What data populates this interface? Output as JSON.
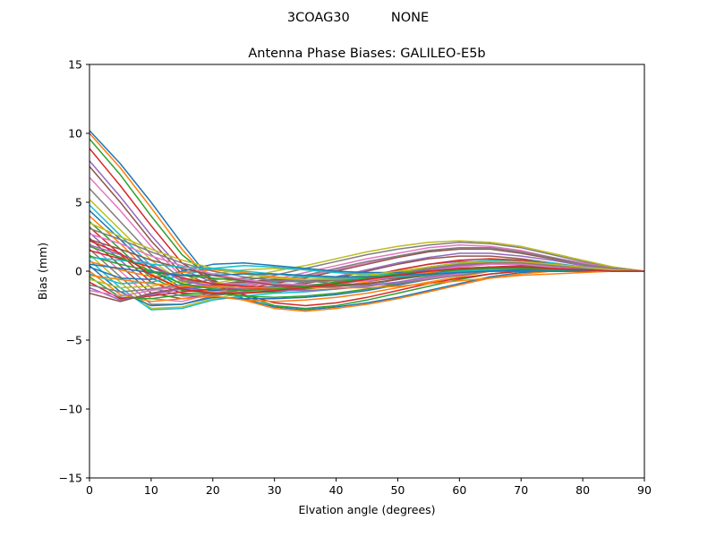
{
  "figure": {
    "suptitle": "3COAG30          NONE"
  },
  "chart_data": {
    "type": "line",
    "title": "Antenna Phase Biases: GALILEO-E5b",
    "xlabel": "Elvation angle (degrees)",
    "ylabel": "Bias (mm)",
    "xlim": [
      0,
      90
    ],
    "ylim": [
      -15,
      15
    ],
    "xticks": [
      0,
      10,
      20,
      30,
      40,
      50,
      60,
      70,
      80,
      90
    ],
    "yticks": [
      -15,
      -10,
      -5,
      0,
      5,
      10,
      15
    ],
    "grid": false,
    "legend": "none",
    "x": [
      0,
      5,
      10,
      15,
      20,
      25,
      30,
      35,
      40,
      45,
      50,
      55,
      60,
      65,
      70,
      75,
      80,
      85,
      90
    ],
    "palette": [
      "#1f77b4",
      "#ff7f0e",
      "#2ca02c",
      "#d62728",
      "#9467bd",
      "#8c564b",
      "#e377c2",
      "#7f7f7f",
      "#bcbd22",
      "#17becf"
    ],
    "series": [
      {
        "values": [
          10.2,
          7.8,
          5.0,
          2.0,
          -0.8,
          -2.0,
          -2.6,
          -2.8,
          -2.6,
          -2.3,
          -1.9,
          -1.4,
          -0.9,
          -0.4,
          -0.1,
          0.0,
          0.0,
          0.0,
          0.0
        ]
      },
      {
        "values": [
          10.0,
          7.5,
          4.6,
          1.6,
          -0.9,
          -2.1,
          -2.7,
          -2.9,
          -2.7,
          -2.4,
          -2.0,
          -1.5,
          -1.0,
          -0.5,
          -0.2,
          0.0,
          0.0,
          0.0,
          0.0
        ]
      },
      {
        "values": [
          9.6,
          7.0,
          4.0,
          1.2,
          -0.6,
          -1.8,
          -2.5,
          -2.7,
          -2.5,
          -2.1,
          -1.6,
          -1.1,
          -0.6,
          -0.2,
          0.0,
          0.0,
          0.0,
          0.0,
          0.0
        ]
      },
      {
        "values": [
          8.9,
          6.2,
          3.3,
          0.6,
          -0.7,
          -1.7,
          -2.3,
          -2.5,
          -2.3,
          -1.9,
          -1.4,
          -0.9,
          -0.5,
          -0.2,
          0.0,
          0.0,
          0.0,
          0.0,
          0.0
        ]
      },
      {
        "values": [
          8.0,
          5.4,
          2.6,
          0.1,
          -0.8,
          -1.4,
          -1.5,
          -1.3,
          -0.9,
          -0.4,
          0.1,
          0.5,
          0.7,
          0.7,
          0.6,
          0.4,
          0.2,
          0.1,
          0.0
        ]
      },
      {
        "values": [
          7.6,
          5.0,
          2.2,
          -0.2,
          -1.0,
          -1.3,
          -1.2,
          -0.9,
          -0.5,
          0.0,
          0.5,
          0.9,
          1.1,
          1.1,
          0.9,
          0.6,
          0.3,
          0.1,
          0.0
        ]
      },
      {
        "values": [
          6.8,
          4.4,
          1.8,
          -0.4,
          -1.2,
          -1.0,
          -0.8,
          -0.4,
          0.1,
          0.6,
          1.1,
          1.5,
          1.7,
          1.7,
          1.4,
          1.0,
          0.6,
          0.2,
          0.0
        ]
      },
      {
        "values": [
          6.0,
          3.6,
          1.2,
          -0.6,
          -1.0,
          -0.7,
          -0.3,
          0.2,
          0.7,
          1.2,
          1.6,
          1.9,
          2.1,
          2.0,
          1.7,
          1.2,
          0.7,
          0.3,
          0.0
        ]
      },
      {
        "values": [
          5.2,
          3.0,
          0.8,
          -0.8,
          -0.9,
          -0.5,
          0.0,
          0.4,
          0.9,
          1.4,
          1.8,
          2.1,
          2.2,
          2.1,
          1.8,
          1.3,
          0.8,
          0.3,
          0.0
        ]
      },
      {
        "values": [
          4.8,
          2.6,
          0.4,
          -1.0,
          -1.2,
          -1.0,
          -0.8,
          -0.7,
          -0.6,
          -0.4,
          -0.1,
          0.3,
          0.6,
          0.8,
          0.8,
          0.6,
          0.3,
          0.1,
          0.0
        ]
      },
      {
        "values": [
          4.4,
          2.3,
          0.1,
          -1.2,
          -1.4,
          -1.3,
          -1.1,
          -1.0,
          -0.9,
          -0.6,
          -0.2,
          0.2,
          0.5,
          0.6,
          0.6,
          0.5,
          0.3,
          0.1,
          0.0
        ]
      },
      {
        "values": [
          4.0,
          2.0,
          -0.2,
          -1.3,
          -1.5,
          -1.5,
          -1.4,
          -1.3,
          -1.1,
          -0.8,
          -0.4,
          0.0,
          0.3,
          0.5,
          0.5,
          0.4,
          0.2,
          0.1,
          0.0
        ]
      },
      {
        "values": [
          3.6,
          1.6,
          -0.5,
          -1.4,
          -1.6,
          -1.6,
          -1.5,
          -1.3,
          -1.0,
          -0.6,
          -0.1,
          0.3,
          0.6,
          0.7,
          0.6,
          0.4,
          0.2,
          0.1,
          0.0
        ]
      },
      {
        "values": [
          3.2,
          1.2,
          -0.8,
          -1.6,
          -1.7,
          -1.6,
          -1.4,
          -1.1,
          -0.8,
          -0.4,
          0.1,
          0.5,
          0.8,
          0.9,
          0.8,
          0.5,
          0.3,
          0.1,
          0.0
        ]
      },
      {
        "values": [
          2.8,
          0.8,
          -1.2,
          -1.8,
          -1.8,
          -1.5,
          -1.2,
          -0.8,
          -0.4,
          0.1,
          0.6,
          1.0,
          1.3,
          1.3,
          1.1,
          0.8,
          0.4,
          0.1,
          0.0
        ]
      },
      {
        "values": [
          2.4,
          0.4,
          -1.6,
          -2.0,
          -1.7,
          -1.3,
          -0.9,
          -0.5,
          0.0,
          0.5,
          1.0,
          1.4,
          1.6,
          1.6,
          1.3,
          0.9,
          0.5,
          0.2,
          0.0
        ]
      },
      {
        "values": [
          2.0,
          0.0,
          -2.0,
          -2.2,
          -1.6,
          -1.1,
          -0.6,
          -0.1,
          0.4,
          0.9,
          1.3,
          1.7,
          1.9,
          1.8,
          1.5,
          1.0,
          0.6,
          0.2,
          0.0
        ]
      },
      {
        "values": [
          1.6,
          -0.4,
          -2.4,
          -2.4,
          -1.8,
          -1.2,
          -0.7,
          -0.3,
          0.2,
          0.7,
          1.1,
          1.5,
          1.7,
          1.7,
          1.4,
          1.0,
          0.5,
          0.2,
          0.0
        ]
      },
      {
        "values": [
          1.2,
          -0.8,
          -2.7,
          -2.6,
          -2.0,
          -1.6,
          -1.3,
          -1.1,
          -0.8,
          -0.5,
          -0.1,
          0.3,
          0.5,
          0.6,
          0.5,
          0.4,
          0.2,
          0.1,
          0.0
        ]
      },
      {
        "values": [
          0.8,
          -1.2,
          -2.8,
          -2.7,
          -2.1,
          -1.8,
          -1.6,
          -1.5,
          -1.3,
          -1.0,
          -0.6,
          -0.2,
          0.2,
          0.3,
          0.3,
          0.3,
          0.2,
          0.1,
          0.0
        ]
      },
      {
        "values": [
          0.4,
          -1.5,
          -2.5,
          -2.4,
          -1.9,
          -2.0,
          -2.0,
          -1.9,
          -1.7,
          -1.4,
          -1.0,
          -0.6,
          -0.2,
          0.1,
          0.2,
          0.2,
          0.1,
          0.0,
          0.0
        ]
      },
      {
        "values": [
          0.0,
          -1.7,
          -2.2,
          -2.0,
          -1.8,
          -2.1,
          -2.2,
          -2.1,
          -1.9,
          -1.6,
          -1.2,
          -0.8,
          -0.4,
          0.0,
          0.1,
          0.1,
          0.1,
          0.0,
          0.0
        ]
      },
      {
        "values": [
          -0.4,
          -1.9,
          -2.0,
          -1.7,
          -1.6,
          -1.8,
          -1.9,
          -1.8,
          -1.6,
          -1.3,
          -0.9,
          -0.5,
          -0.1,
          0.1,
          0.2,
          0.2,
          0.1,
          0.0,
          0.0
        ]
      },
      {
        "values": [
          -0.8,
          -2.0,
          -1.8,
          -1.5,
          -1.3,
          -1.3,
          -1.2,
          -1.1,
          -0.9,
          -0.6,
          -0.2,
          0.2,
          0.5,
          0.6,
          0.5,
          0.4,
          0.2,
          0.1,
          0.0
        ]
      },
      {
        "values": [
          -1.2,
          -2.1,
          -1.7,
          -1.3,
          -1.1,
          -0.9,
          -0.7,
          -0.6,
          -0.6,
          -0.5,
          -0.2,
          0.1,
          0.4,
          0.5,
          0.5,
          0.4,
          0.2,
          0.1,
          0.0
        ]
      },
      {
        "values": [
          -1.6,
          -2.2,
          -1.6,
          -1.2,
          -1.0,
          -0.8,
          -0.6,
          -0.6,
          -0.7,
          -0.7,
          -0.5,
          -0.2,
          0.1,
          0.3,
          0.4,
          0.3,
          0.2,
          0.1,
          0.0
        ]
      },
      {
        "values": [
          -1.4,
          -1.8,
          -1.4,
          -1.1,
          -0.9,
          -0.9,
          -1.0,
          -1.1,
          -1.1,
          -1.0,
          -0.8,
          -0.5,
          -0.2,
          0.1,
          0.2,
          0.2,
          0.1,
          0.0,
          0.0
        ]
      },
      {
        "values": [
          -1.0,
          -1.5,
          -1.3,
          -1.0,
          -0.6,
          -0.5,
          -0.5,
          -0.7,
          -0.9,
          -1.0,
          -0.9,
          -0.6,
          -0.3,
          0.0,
          0.1,
          0.1,
          0.1,
          0.0,
          0.0
        ]
      },
      {
        "values": [
          -0.6,
          -1.2,
          -1.1,
          -0.7,
          -0.2,
          0.1,
          0.2,
          0.1,
          -0.1,
          -0.3,
          -0.3,
          -0.2,
          -0.1,
          0.0,
          0.1,
          0.1,
          0.0,
          0.0,
          0.0
        ]
      },
      {
        "values": [
          -0.2,
          -0.9,
          -0.8,
          -0.3,
          0.2,
          0.4,
          0.3,
          0.1,
          -0.1,
          -0.2,
          -0.2,
          -0.1,
          0.0,
          0.0,
          0.0,
          0.0,
          0.0,
          0.0,
          0.0
        ]
      },
      {
        "values": [
          0.3,
          -0.5,
          -0.6,
          0.0,
          0.5,
          0.6,
          0.4,
          0.2,
          0.0,
          -0.1,
          -0.1,
          0.0,
          0.0,
          0.0,
          0.0,
          0.0,
          0.0,
          0.0,
          0.0
        ]
      },
      {
        "values": [
          0.7,
          0.1,
          -0.4,
          -0.1,
          0.1,
          -0.1,
          -0.4,
          -0.6,
          -0.6,
          -0.5,
          -0.3,
          -0.1,
          0.1,
          0.2,
          0.2,
          0.1,
          0.1,
          0.0,
          0.0
        ]
      },
      {
        "values": [
          1.1,
          0.5,
          0.0,
          -0.3,
          -0.5,
          -0.7,
          -0.9,
          -1.0,
          -1.0,
          -0.9,
          -0.6,
          -0.3,
          0.0,
          0.2,
          0.2,
          0.2,
          0.1,
          0.0,
          0.0
        ]
      },
      {
        "values": [
          1.5,
          0.9,
          0.3,
          -0.5,
          -0.9,
          -1.1,
          -1.2,
          -1.2,
          -1.1,
          -0.9,
          -0.6,
          -0.2,
          0.1,
          0.3,
          0.3,
          0.2,
          0.1,
          0.0,
          0.0
        ]
      },
      {
        "values": [
          1.9,
          1.2,
          0.5,
          -0.7,
          -1.1,
          -1.3,
          -1.4,
          -1.4,
          -1.3,
          -1.1,
          -0.8,
          -0.4,
          -0.1,
          0.2,
          0.3,
          0.2,
          0.1,
          0.0,
          0.0
        ]
      },
      {
        "values": [
          2.3,
          1.6,
          0.8,
          0.2,
          -0.3,
          -0.7,
          -1.0,
          -1.1,
          -1.1,
          -0.9,
          -0.6,
          -0.2,
          0.1,
          0.3,
          0.3,
          0.2,
          0.1,
          0.0,
          0.0
        ]
      },
      {
        "values": [
          2.7,
          2.0,
          1.1,
          0.4,
          -0.2,
          -0.6,
          -0.9,
          -1.0,
          -0.9,
          -0.7,
          -0.4,
          0.0,
          0.3,
          0.5,
          0.5,
          0.3,
          0.2,
          0.1,
          0.0
        ]
      },
      {
        "values": [
          3.1,
          2.3,
          1.4,
          0.6,
          0.0,
          -0.4,
          -0.7,
          -0.8,
          -0.7,
          -0.5,
          -0.2,
          0.2,
          0.5,
          0.6,
          0.6,
          0.4,
          0.2,
          0.1,
          0.0
        ]
      },
      {
        "values": [
          3.5,
          2.5,
          1.6,
          0.8,
          0.2,
          -0.2,
          -0.5,
          -0.6,
          -0.5,
          -0.3,
          0.0,
          0.3,
          0.6,
          0.7,
          0.7,
          0.5,
          0.3,
          0.1,
          0.0
        ]
      },
      {
        "values": [
          1.0,
          0.8,
          0.5,
          0.3,
          0.2,
          0.0,
          -0.2,
          -0.4,
          -0.5,
          -0.5,
          -0.4,
          -0.2,
          0.0,
          0.1,
          0.1,
          0.1,
          0.0,
          0.0,
          0.0
        ]
      },
      {
        "values": [
          0.5,
          0.2,
          -0.1,
          -0.3,
          -0.3,
          -0.2,
          -0.2,
          -0.3,
          -0.4,
          -0.4,
          -0.3,
          -0.2,
          -0.1,
          0.0,
          0.1,
          0.1,
          0.0,
          0.0,
          0.0
        ]
      },
      {
        "values": [
          -0.3,
          -0.6,
          -0.9,
          -1.1,
          -1.1,
          -1.2,
          -1.2,
          -1.2,
          -1.2,
          -1.2,
          -1.1,
          -0.9,
          -0.7,
          -0.5,
          -0.3,
          -0.2,
          -0.1,
          0.0,
          0.0
        ]
      },
      {
        "values": [
          1.8,
          1.0,
          0.0,
          -0.9,
          -1.3,
          -1.4,
          -1.3,
          -1.1,
          -0.8,
          -0.5,
          -0.2,
          0.0,
          0.1,
          0.2,
          0.2,
          0.1,
          0.1,
          0.0,
          0.0
        ]
      },
      {
        "values": [
          2.2,
          1.3,
          -0.3,
          -1.3,
          -1.6,
          -1.6,
          -1.4,
          -1.2,
          -0.9,
          -0.6,
          -0.3,
          0.0,
          0.2,
          0.3,
          0.3,
          0.2,
          0.1,
          0.0,
          0.0
        ]
      }
    ]
  }
}
